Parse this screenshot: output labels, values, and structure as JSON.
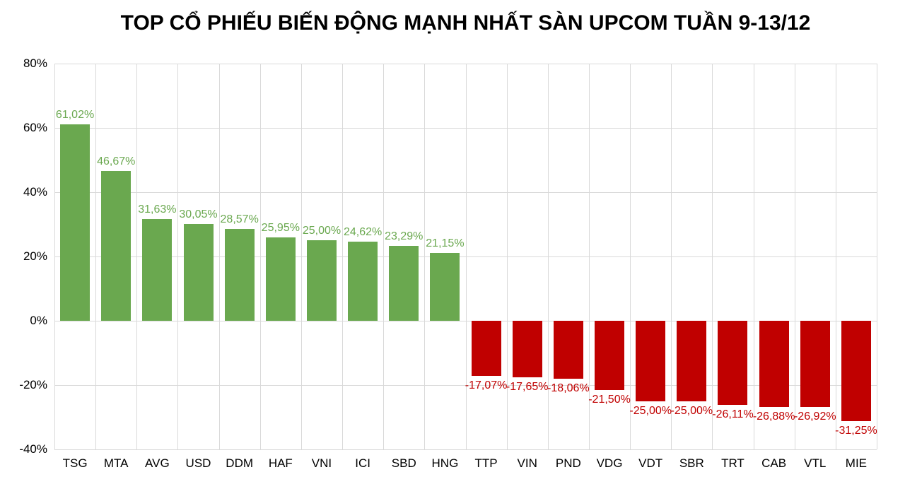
{
  "chart_data": {
    "type": "bar",
    "title": "TOP CỔ PHIẾU BIẾN ĐỘNG MẠNH NHẤT SÀN UPCOM TUẦN 9-13/12",
    "categories": [
      "TSG",
      "MTA",
      "AVG",
      "USD",
      "DDM",
      "HAF",
      "VNI",
      "ICI",
      "SBD",
      "HNG",
      "TTP",
      "VIN",
      "PND",
      "VDG",
      "VDT",
      "SBR",
      "TRT",
      "CAB",
      "VTL",
      "MIE"
    ],
    "values": [
      61.02,
      46.67,
      31.63,
      30.05,
      28.57,
      25.95,
      25.0,
      24.62,
      23.29,
      21.15,
      -17.07,
      -17.65,
      -18.06,
      -21.5,
      -25.0,
      -25.0,
      -26.11,
      -26.88,
      -26.92,
      -31.25
    ],
    "value_labels": [
      "61,02%",
      "46,67%",
      "31,63%",
      "30,05%",
      "28,57%",
      "25,95%",
      "25,00%",
      "24,62%",
      "23,29%",
      "21,15%",
      "-17,07%",
      "-17,65%",
      "-18,06%",
      "-21,50%",
      "-25,00%",
      "-25,00%",
      "-26,11%",
      "-26,88%",
      "-26,92%",
      "-31,25%"
    ],
    "xlabel": "",
    "ylabel": "",
    "ylim": [
      -40,
      80
    ],
    "ytick_step": 20,
    "ytick_labels": [
      "80%",
      "60%",
      "40%",
      "20%",
      "0%",
      "-20%",
      "-40%"
    ],
    "ytick_values": [
      80,
      60,
      40,
      20,
      0,
      -20,
      -40
    ],
    "grid": true,
    "legend": null,
    "colors": {
      "positive": "#6aa84f",
      "negative": "#c00000",
      "gridline": "#d9d9d9",
      "title_text": "#000000",
      "axis_text": "#000000",
      "background": "#ffffff"
    }
  }
}
